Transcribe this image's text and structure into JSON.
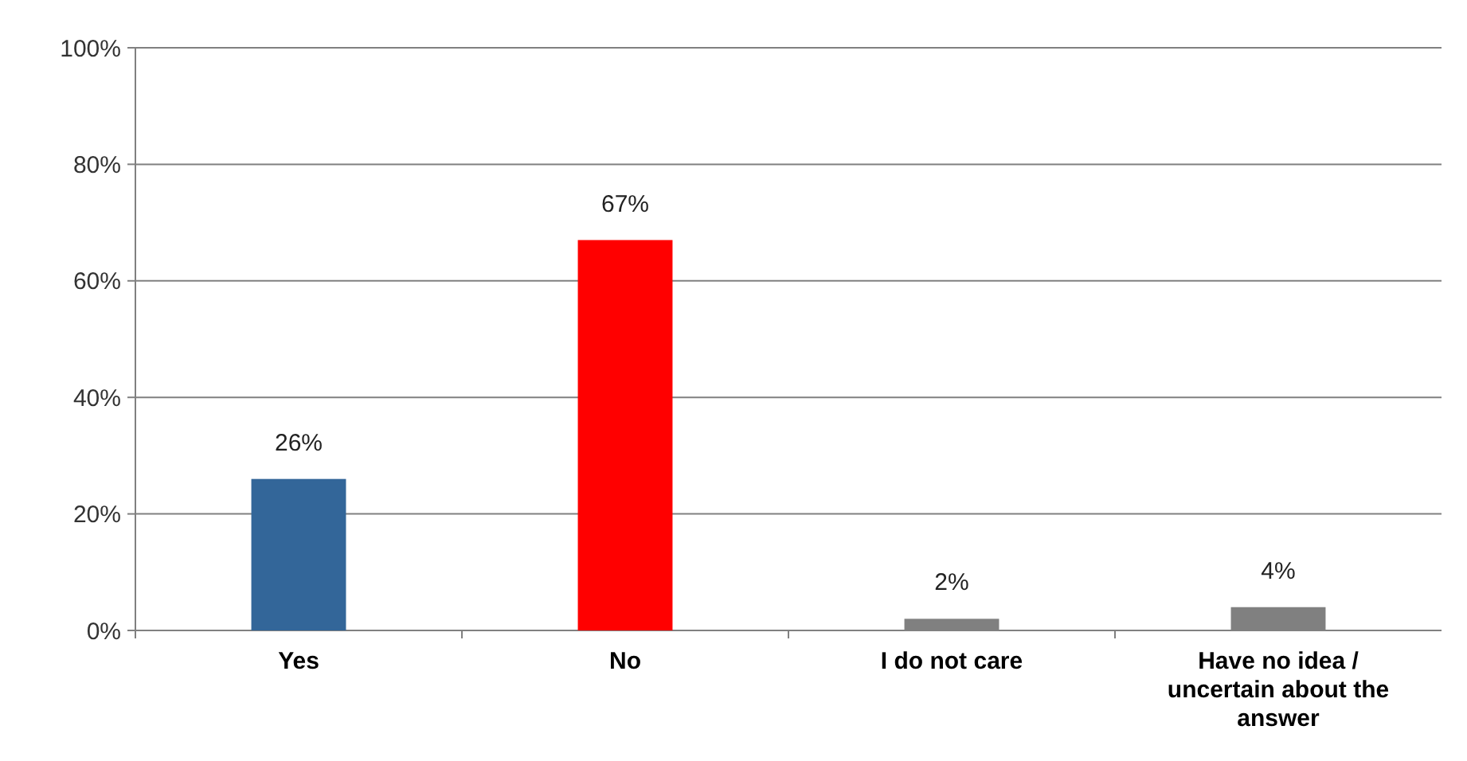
{
  "chart_data": {
    "type": "bar",
    "categories": [
      "Yes",
      "No",
      "I do not care",
      "Have no idea / uncertain about the answer"
    ],
    "values": [
      26,
      67,
      2,
      4
    ],
    "colors": [
      "#336699",
      "#ff0000",
      "#808080",
      "#808080"
    ],
    "value_labels": [
      "26%",
      "67%",
      "2%",
      "4%"
    ],
    "ylim": [
      0,
      100
    ],
    "yticks": [
      {
        "value": 0,
        "label": "0%"
      },
      {
        "value": 20,
        "label": "20%"
      },
      {
        "value": 40,
        "label": "40%"
      },
      {
        "value": 60,
        "label": "60%"
      },
      {
        "value": 80,
        "label": "80%"
      },
      {
        "value": 100,
        "label": "100%"
      }
    ],
    "grid": "y"
  }
}
